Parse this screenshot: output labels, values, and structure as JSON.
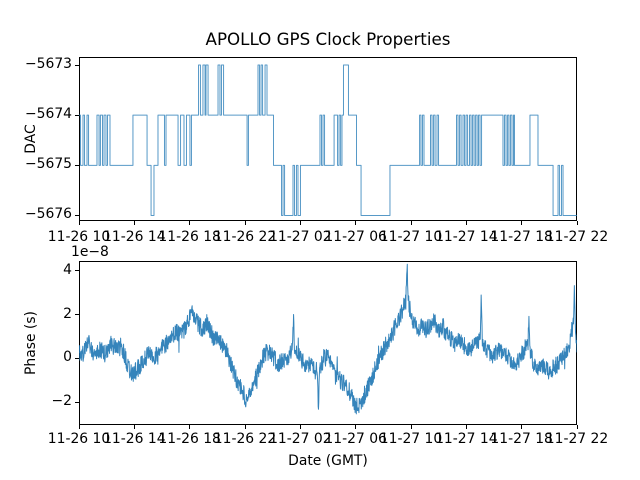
{
  "figure": {
    "title": "APOLLO GPS Clock Properties",
    "background": "#ffffff",
    "text_color": "#000000",
    "line_color": "#1f77b4"
  },
  "axes": {
    "shared_xtick_labels": [
      "11-26 10",
      "11-26 14",
      "11-26 18",
      "11-26 22",
      "11-27 02",
      "11-27 06",
      "11-27 10",
      "11-27 14",
      "11-27 18",
      "11-27 22"
    ],
    "top": {
      "ylabel": "DAC",
      "ylim": [
        -5676.11,
        -5672.84
      ],
      "yticks": [
        {
          "v": -5673,
          "label": "−5673"
        },
        {
          "v": -5674,
          "label": "−5674"
        },
        {
          "v": -5675,
          "label": "−5675"
        },
        {
          "v": -5676,
          "label": "−5676"
        }
      ]
    },
    "bottom": {
      "ylabel": "Phase (s)",
      "offset_text": "1e−8",
      "xlabel": "Date (GMT)",
      "ylim": [
        -3.05,
        4.45
      ],
      "yticks": [
        {
          "v": 4,
          "label": "4"
        },
        {
          "v": 2,
          "label": "2"
        },
        {
          "v": 0,
          "label": "0"
        },
        {
          "v": -2,
          "label": "−2"
        }
      ]
    }
  },
  "chart_data": [
    {
      "type": "line",
      "axes": "top",
      "name": "DAC",
      "drawstyle": "steps-post",
      "color": "#1f77b4",
      "x_unit": "hours since 11-26 10:00 GMT",
      "xlim": [
        0,
        36
      ],
      "ylim": [
        -5676.11,
        -5672.84
      ],
      "steps": [
        [
          0,
          -5674
        ],
        [
          0.11,
          -5675
        ],
        [
          0.29,
          -5674
        ],
        [
          0.4,
          -5675
        ],
        [
          0.58,
          -5674
        ],
        [
          0.69,
          -5675
        ],
        [
          1.3,
          -5674
        ],
        [
          1.45,
          -5675
        ],
        [
          1.55,
          -5674
        ],
        [
          1.7,
          -5675
        ],
        [
          1.81,
          -5674
        ],
        [
          1.95,
          -5675
        ],
        [
          2.06,
          -5674
        ],
        [
          2.24,
          -5675
        ],
        [
          3.9,
          -5674
        ],
        [
          4.92,
          -5675
        ],
        [
          5.21,
          -5676
        ],
        [
          5.42,
          -5675
        ],
        [
          5.71,
          -5674
        ],
        [
          6.18,
          -5675
        ],
        [
          6.29,
          -5674
        ],
        [
          7.16,
          -5675
        ],
        [
          7.34,
          -5674
        ],
        [
          7.59,
          -5675
        ],
        [
          7.77,
          -5674
        ],
        [
          8.02,
          -5675
        ],
        [
          8.13,
          -5674
        ],
        [
          8.64,
          -5673
        ],
        [
          8.78,
          -5674
        ],
        [
          8.96,
          -5673
        ],
        [
          9.11,
          -5674
        ],
        [
          9.18,
          -5673
        ],
        [
          9.33,
          -5674
        ],
        [
          10.05,
          -5673
        ],
        [
          10.19,
          -5674
        ],
        [
          10.3,
          -5673
        ],
        [
          10.45,
          -5674
        ],
        [
          12.15,
          -5675
        ],
        [
          12.25,
          -5674
        ],
        [
          12.94,
          -5673
        ],
        [
          13.05,
          -5674
        ],
        [
          13.16,
          -5673
        ],
        [
          13.27,
          -5674
        ],
        [
          13.45,
          -5673
        ],
        [
          13.59,
          -5674
        ],
        [
          14.06,
          -5675
        ],
        [
          14.64,
          -5676
        ],
        [
          14.75,
          -5675
        ],
        [
          14.86,
          -5676
        ],
        [
          15.47,
          -5675
        ],
        [
          15.58,
          -5676
        ],
        [
          15.72,
          -5675
        ],
        [
          15.83,
          -5676
        ],
        [
          16.01,
          -5675
        ],
        [
          17.42,
          -5674
        ],
        [
          17.53,
          -5675
        ],
        [
          17.64,
          -5674
        ],
        [
          17.75,
          -5675
        ],
        [
          18.44,
          -5674
        ],
        [
          18.69,
          -5675
        ],
        [
          18.8,
          -5674
        ],
        [
          18.91,
          -5675
        ],
        [
          19.01,
          -5674
        ],
        [
          19.12,
          -5673
        ],
        [
          19.48,
          -5674
        ],
        [
          20.06,
          -5675
        ],
        [
          20.39,
          -5676
        ],
        [
          22.48,
          -5675
        ],
        [
          24.62,
          -5674
        ],
        [
          24.72,
          -5675
        ],
        [
          24.83,
          -5674
        ],
        [
          24.94,
          -5675
        ],
        [
          25.41,
          -5674
        ],
        [
          25.52,
          -5675
        ],
        [
          25.63,
          -5674
        ],
        [
          25.74,
          -5675
        ],
        [
          25.88,
          -5674
        ],
        [
          25.99,
          -5675
        ],
        [
          27.29,
          -5674
        ],
        [
          27.4,
          -5675
        ],
        [
          27.51,
          -5674
        ],
        [
          27.62,
          -5675
        ],
        [
          27.76,
          -5674
        ],
        [
          27.87,
          -5675
        ],
        [
          27.98,
          -5674
        ],
        [
          28.09,
          -5675
        ],
        [
          28.23,
          -5674
        ],
        [
          28.34,
          -5675
        ],
        [
          28.45,
          -5674
        ],
        [
          28.56,
          -5675
        ],
        [
          28.67,
          -5674
        ],
        [
          28.78,
          -5675
        ],
        [
          28.88,
          -5674
        ],
        [
          28.99,
          -5675
        ],
        [
          29.1,
          -5674
        ],
        [
          30.65,
          -5675
        ],
        [
          30.76,
          -5674
        ],
        [
          30.87,
          -5675
        ],
        [
          30.98,
          -5674
        ],
        [
          31.08,
          -5675
        ],
        [
          31.19,
          -5674
        ],
        [
          31.3,
          -5675
        ],
        [
          31.41,
          -5674
        ],
        [
          31.48,
          -5675
        ],
        [
          32.6,
          -5674
        ],
        [
          33.18,
          -5675
        ],
        [
          34.27,
          -5676
        ],
        [
          34.63,
          -5675
        ],
        [
          34.74,
          -5676
        ],
        [
          34.88,
          -5675
        ],
        [
          34.99,
          -5676
        ]
      ]
    },
    {
      "type": "line",
      "axes": "bottom",
      "name": "Phase",
      "color": "#1f77b4",
      "y_scale": "1e-8 s",
      "x_unit": "hours since 11-26 10:00 GMT",
      "xlim": [
        0,
        36
      ],
      "ylim": [
        -3.05,
        4.45
      ],
      "envelope": [
        [
          0,
          0.35
        ],
        [
          0.3,
          0.1
        ],
        [
          0.7,
          0.5
        ],
        [
          1.1,
          -0.15
        ],
        [
          1.5,
          0.3
        ],
        [
          1.9,
          0.05
        ],
        [
          2.3,
          0.45
        ],
        [
          2.7,
          0.2
        ],
        [
          3.1,
          0.35
        ],
        [
          3.5,
          -0.15
        ],
        [
          3.9,
          -0.45
        ],
        [
          4.3,
          -0.25
        ],
        [
          4.7,
          0.05
        ],
        [
          5.1,
          0.4
        ],
        [
          5.5,
          0.15
        ],
        [
          5.9,
          0.35
        ],
        [
          6.3,
          0.5
        ],
        [
          6.7,
          0.75
        ],
        [
          7.1,
          1.05
        ],
        [
          7.5,
          1.25
        ],
        [
          7.9,
          1.5
        ],
        [
          8.15,
          1.95
        ],
        [
          8.4,
          1.5
        ],
        [
          8.7,
          1.3
        ],
        [
          9,
          1.1
        ],
        [
          9.3,
          1.5
        ],
        [
          9.6,
          1.2
        ],
        [
          9.9,
          0.95
        ],
        [
          10.3,
          0.6
        ],
        [
          10.7,
          0.2
        ],
        [
          11.1,
          -0.4
        ],
        [
          11.5,
          -1
        ],
        [
          11.9,
          -1.55
        ],
        [
          12.1,
          -1.9
        ],
        [
          12.35,
          -1.55
        ],
        [
          12.6,
          -1.05
        ],
        [
          12.9,
          -0.5
        ],
        [
          13.2,
          -0.2
        ],
        [
          13.6,
          0.05
        ],
        [
          14,
          -0.05
        ],
        [
          14.4,
          -0.25
        ],
        [
          14.8,
          -0.1
        ],
        [
          15.2,
          0.05
        ],
        [
          15.42,
          0.3
        ],
        [
          15.5,
          1.65
        ],
        [
          15.58,
          0.3
        ],
        [
          15.9,
          -0.05
        ],
        [
          16.3,
          -0.25
        ],
        [
          16.7,
          -0.1
        ],
        [
          17,
          -0.2
        ],
        [
          17.24,
          -0.5
        ],
        [
          17.3,
          -2.35
        ],
        [
          17.38,
          -0.5
        ],
        [
          17.7,
          -0.05
        ],
        [
          18,
          -0.2
        ],
        [
          18.4,
          -0.55
        ],
        [
          18.8,
          -0.9
        ],
        [
          19.2,
          -1.25
        ],
        [
          19.6,
          -1.7
        ],
        [
          19.95,
          -2.1
        ],
        [
          20.25,
          -2.05
        ],
        [
          20.55,
          -1.65
        ],
        [
          20.9,
          -1.2
        ],
        [
          21.3,
          -0.6
        ],
        [
          21.7,
          0.1
        ],
        [
          22.1,
          0.7
        ],
        [
          22.5,
          1.1
        ],
        [
          22.8,
          1.45
        ],
        [
          23.1,
          1.7
        ],
        [
          23.4,
          2.1
        ],
        [
          23.6,
          2.7
        ],
        [
          23.68,
          3.3
        ],
        [
          23.73,
          4.15
        ],
        [
          23.8,
          2.6
        ],
        [
          23.95,
          2.1
        ],
        [
          24.2,
          1.6
        ],
        [
          24.5,
          1.45
        ],
        [
          24.8,
          1.8
        ],
        [
          25.1,
          1.5
        ],
        [
          25.4,
          1.65
        ],
        [
          25.7,
          1.8
        ],
        [
          26,
          1.35
        ],
        [
          26.3,
          1.5
        ],
        [
          26.6,
          1.1
        ],
        [
          26.9,
          0.9
        ],
        [
          27.2,
          0.65
        ],
        [
          27.5,
          0.95
        ],
        [
          27.8,
          0.7
        ],
        [
          28.1,
          0.5
        ],
        [
          28.4,
          0.3
        ],
        [
          28.7,
          0.65
        ],
        [
          29,
          0.9
        ],
        [
          29.08,
          3.1
        ],
        [
          29.16,
          0.9
        ],
        [
          29.5,
          0.55
        ],
        [
          29.9,
          0.35
        ],
        [
          30.3,
          0.45
        ],
        [
          30.7,
          0.15
        ],
        [
          31.1,
          -0.1
        ],
        [
          31.5,
          -0.2
        ],
        [
          31.9,
          -0.05
        ],
        [
          32.2,
          0.2
        ],
        [
          32.46,
          0.5
        ],
        [
          32.52,
          1.9
        ],
        [
          32.6,
          0.2
        ],
        [
          32.9,
          -0.3
        ],
        [
          33.2,
          -0.45
        ],
        [
          33.6,
          -0.25
        ],
        [
          34,
          -0.55
        ],
        [
          34.4,
          -0.2
        ],
        [
          34.8,
          0.05
        ],
        [
          35.2,
          0.45
        ],
        [
          35.5,
          0.85
        ],
        [
          35.75,
          1.7
        ],
        [
          35.82,
          3.25
        ],
        [
          35.9,
          1
        ],
        [
          36,
          0.55
        ]
      ],
      "noise": {
        "fast_amp": 0.4,
        "slow_amp": 0.3,
        "seed": 20231126,
        "samples": 1700
      }
    }
  ]
}
